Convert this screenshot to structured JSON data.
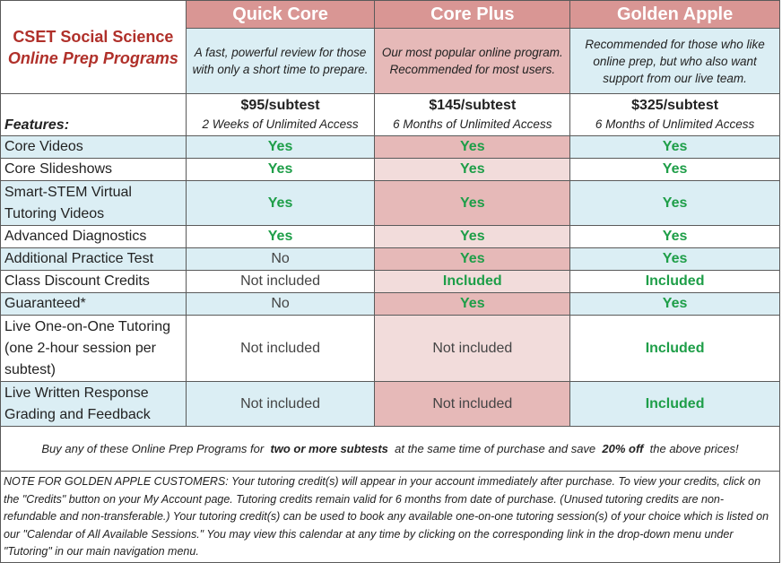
{
  "title": {
    "line1": "CSET Social Science",
    "line2": "Online Prep Programs"
  },
  "plans": [
    {
      "name": "Quick Core",
      "description": "A fast, powerful review for those with only a short time to prepare.",
      "price": "$95/subtest",
      "access": "2 Weeks of Unlimited Access"
    },
    {
      "name": "Core Plus",
      "description": "Our most popular online program.  Recommended for most users.",
      "price": "$145/subtest",
      "access": "6 Months of Unlimited Access"
    },
    {
      "name": "Golden Apple",
      "description": "Recommended for those who like online prep, but who also want support from our live team.",
      "price": "$325/subtest",
      "access": "6 Months of Unlimited Access"
    }
  ],
  "features_label": "Features:",
  "features": [
    {
      "name": "Core Videos",
      "values": [
        "Yes",
        "Yes",
        "Yes"
      ]
    },
    {
      "name": "Core Slideshows",
      "values": [
        "Yes",
        "Yes",
        "Yes"
      ]
    },
    {
      "name": "Smart-STEM Virtual Tutoring Videos",
      "values": [
        "Yes",
        "Yes",
        "Yes"
      ]
    },
    {
      "name": "Advanced Diagnostics",
      "values": [
        "Yes",
        "Yes",
        "Yes"
      ]
    },
    {
      "name": "Additional Practice Test",
      "values": [
        "No",
        "Yes",
        "Yes"
      ]
    },
    {
      "name": "Class Discount Credits",
      "values": [
        "Not included",
        "Included",
        "Included"
      ]
    },
    {
      "name": "Guaranteed*",
      "values": [
        "No",
        "Yes",
        "Yes"
      ]
    },
    {
      "name": "Live One-on-One Tutoring (one 2-hour session per subtest)",
      "values": [
        "Not included",
        "Not included",
        "Included"
      ]
    },
    {
      "name": "Live Written Response Grading and Feedback",
      "values": [
        "Not included",
        "Not included",
        "Included"
      ]
    }
  ],
  "promo": {
    "before": "Buy any of these Online Prep Programs for ",
    "bold1": "two or more subtests",
    "middle": " at the same time of purchase and save ",
    "bold2": "20% off",
    "after": " the above prices!"
  },
  "note": "NOTE FOR GOLDEN APPLE CUSTOMERS: Your tutoring credit(s) will appear in your account immediately after purchase.  To view your credits, click on the \"Credits\" button on your My Account page.  Tutoring credits remain valid for 6 months from date of purchase.  (Unused tutoring credits are non-refundable and non-transferable.)  Your tutoring credit(s) can be used to book any available one-on-one tutoring session(s) of your choice which is listed on our \"Calendar of All Available Sessions.\"  You may view this calendar at any time by clicking on the corresponding link in the drop-down menu under \"Tutoring\" in our main navigation menu.",
  "colors": {
    "header_bg": "#d99694",
    "blue_col": "#dbeef4",
    "pink_col": "#e6b9b8",
    "light_pink_col": "#f2dcdb",
    "yes_green": "#1e9e48",
    "title_red": "#b0302a"
  }
}
